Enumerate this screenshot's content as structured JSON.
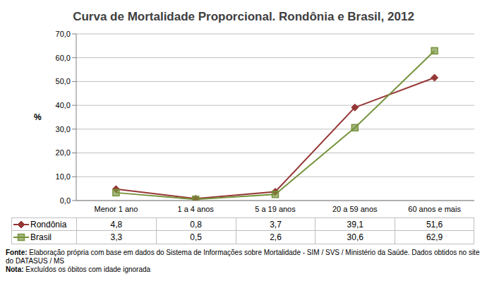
{
  "chart_data": {
    "type": "line",
    "title": "Curva de Mortalidade Proporcional. Rondônia e Brasil, 2012",
    "y_label": "%",
    "categories": [
      "Menor 1 ano",
      "1 a 4 anos",
      "5 a 19 anos",
      "20 a 59 anos",
      "60 anos e mais"
    ],
    "series": [
      {
        "name": "Rondônia",
        "color": "#953735",
        "marker": "diamond",
        "values": [
          4.8,
          0.8,
          3.7,
          39.1,
          51.6
        ],
        "value_labels": [
          "4,8",
          "0,8",
          "3,7",
          "39,1",
          "51,6"
        ]
      },
      {
        "name": "Brasil",
        "color": "#77933c",
        "marker": "square",
        "values": [
          3.3,
          0.5,
          2.6,
          30.6,
          62.9
        ],
        "value_labels": [
          "3,3",
          "0,5",
          "2,6",
          "30,6",
          "62,9"
        ]
      }
    ],
    "ylim": [
      0,
      70
    ],
    "yticks": [
      {
        "value": 0,
        "label": "0,0"
      },
      {
        "value": 10,
        "label": "10,0"
      },
      {
        "value": 20,
        "label": "20,0"
      },
      {
        "value": 30,
        "label": "30,0"
      },
      {
        "value": 40,
        "label": "40,0"
      },
      {
        "value": 50,
        "label": "50,0"
      },
      {
        "value": 60,
        "label": "60,0"
      },
      {
        "value": 70,
        "label": "70,0"
      }
    ],
    "grid": true,
    "source_label": "Fonte:",
    "source": "Elaboração própria com base em dados do Sistema de Informações sobre Mortalidade - SIM / SVS / Ministério da Saúde. Dados obtidos no site do DATASUS / MS",
    "note_label": "Nota:",
    "note": "Excluídos os óbitos com idade ignorada"
  }
}
